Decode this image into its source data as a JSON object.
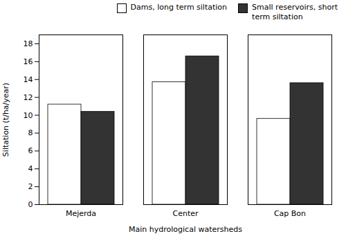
{
  "chart_data": {
    "type": "bar",
    "xlabel": "Main hydrological watersheds",
    "ylabel": "Siltation (t/ha/year)",
    "categories": [
      "Mejerda",
      "Center",
      "Cap Bon"
    ],
    "series": [
      {
        "name": "Dams, long term siltation",
        "color": "white",
        "values": [
          11.2,
          13.7,
          9.6
        ]
      },
      {
        "name": "Small reservoirs, short\nterm siltation",
        "color": "#333333",
        "values": [
          10.4,
          16.6,
          13.6
        ]
      }
    ],
    "ylim": [
      0,
      19
    ],
    "yticks": [
      0,
      2,
      4,
      6,
      8,
      10,
      12,
      14,
      16,
      18
    ],
    "legend": "upper right"
  }
}
